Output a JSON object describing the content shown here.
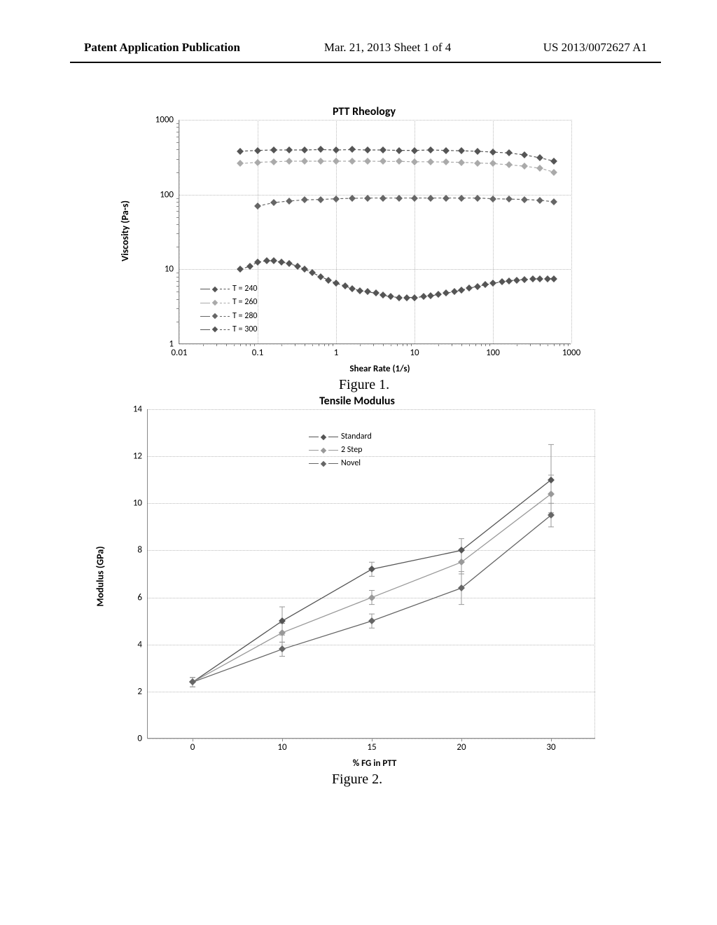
{
  "header": {
    "left": "Patent Application Publication",
    "center": "Mar. 21, 2013  Sheet 1 of 4",
    "right": "US 2013/0072627 A1"
  },
  "fig1": {
    "type": "line",
    "title": "PTT Rheology",
    "ylabel": "Viscosity (Pa-s)",
    "xlabel": "Shear Rate (1/s)",
    "yscale": "log",
    "xscale": "log",
    "ylim": [
      1,
      1000
    ],
    "xlim": [
      0.01,
      1000
    ],
    "yticks": [
      1,
      10,
      100,
      1000
    ],
    "xticks": [
      0.01,
      0.1,
      1,
      10,
      100,
      1000
    ],
    "grid_color": "#bbbbbb",
    "background_color": "#ffffff",
    "legend_items": [
      "T = 240",
      "T = 260",
      "T = 280",
      "T = 300"
    ],
    "legend_position": "lower-left",
    "series": [
      {
        "name": "T = 240",
        "color": "#555555",
        "marker": "diamond",
        "x": [
          0.06,
          0.1,
          0.16,
          0.25,
          0.4,
          0.63,
          1,
          1.6,
          2.5,
          4,
          6.3,
          10,
          16,
          25,
          40,
          63,
          100,
          160,
          250,
          400,
          600
        ],
        "y": [
          380,
          390,
          395,
          395,
          395,
          400,
          395,
          400,
          395,
          395,
          390,
          390,
          395,
          390,
          385,
          380,
          370,
          360,
          340,
          310,
          280
        ]
      },
      {
        "name": "T = 260",
        "color": "#aaaaaa",
        "marker": "diamond",
        "x": [
          0.06,
          0.1,
          0.16,
          0.25,
          0.4,
          0.63,
          1,
          1.6,
          2.5,
          4,
          6.3,
          10,
          16,
          25,
          40,
          63,
          100,
          160,
          250,
          400,
          600
        ],
        "y": [
          260,
          270,
          275,
          280,
          280,
          280,
          280,
          280,
          280,
          278,
          278,
          275,
          275,
          272,
          270,
          265,
          260,
          250,
          240,
          225,
          200
        ]
      },
      {
        "name": "T = 280",
        "color": "#666666",
        "marker": "diamond",
        "x": [
          0.1,
          0.16,
          0.25,
          0.4,
          0.63,
          1,
          1.6,
          2.5,
          4,
          6.3,
          10,
          16,
          25,
          40,
          63,
          100,
          160,
          250,
          400,
          600
        ],
        "y": [
          70,
          78,
          82,
          85,
          86,
          88,
          89,
          90,
          90,
          90,
          90,
          90,
          90,
          90,
          90,
          88,
          87,
          86,
          84,
          80
        ]
      },
      {
        "name": "T = 300",
        "color": "#555555",
        "marker": "diamond",
        "x": [
          0.06,
          0.08,
          0.1,
          0.13,
          0.16,
          0.2,
          0.25,
          0.32,
          0.4,
          0.5,
          0.63,
          0.8,
          1,
          1.3,
          1.6,
          2,
          2.5,
          3.2,
          4,
          5,
          6.3,
          8,
          10,
          13,
          16,
          20,
          25,
          32,
          40,
          50,
          63,
          80,
          100,
          130,
          160,
          200,
          250,
          320,
          400,
          500,
          600
        ],
        "y": [
          10,
          11,
          12.5,
          13,
          13,
          12.5,
          12,
          11,
          10,
          9,
          8,
          7.2,
          6.5,
          6,
          5.5,
          5.2,
          5,
          4.8,
          4.5,
          4.3,
          4.2,
          4.2,
          4.2,
          4.3,
          4.4,
          4.6,
          4.8,
          5,
          5.3,
          5.6,
          5.9,
          6.2,
          6.5,
          6.8,
          7,
          7.2,
          7.3,
          7.4,
          7.5,
          7.5,
          7.5
        ]
      }
    ],
    "caption": "Figure 1."
  },
  "fig2": {
    "type": "line",
    "title": "Tensile Modulus",
    "ylabel": "Modulus (GPa)",
    "xlabel": "% FG in PTT",
    "yscale": "linear",
    "xscale": "category",
    "ylim": [
      0,
      14
    ],
    "yticks": [
      0,
      2,
      4,
      6,
      8,
      10,
      12,
      14
    ],
    "xticks": [
      0,
      10,
      15,
      20,
      30
    ],
    "grid_color": "#bbbbbb",
    "background_color": "#ffffff",
    "legend_items": [
      "Standard",
      "2 Step",
      "Novel"
    ],
    "legend_position": "upper-center-left",
    "error_bars": true,
    "series": [
      {
        "name": "Standard",
        "color": "#555555",
        "marker": "diamond",
        "x": [
          0,
          10,
          15,
          20,
          30
        ],
        "y": [
          2.4,
          5.0,
          7.2,
          8.0,
          11.0
        ],
        "err": [
          0.2,
          0.6,
          0.3,
          0.5,
          1.5
        ]
      },
      {
        "name": "2 Step",
        "color": "#999999",
        "marker": "diamond",
        "x": [
          0,
          10,
          15,
          20,
          30
        ],
        "y": [
          2.4,
          4.5,
          6.0,
          7.5,
          10.4
        ],
        "err": [
          0.2,
          0.4,
          0.3,
          0.5,
          0.8
        ]
      },
      {
        "name": "Novel",
        "color": "#666666",
        "marker": "diamond",
        "x": [
          0,
          10,
          15,
          20,
          30
        ],
        "y": [
          2.4,
          3.8,
          5.0,
          6.4,
          9.5
        ],
        "err": [
          0.2,
          0.3,
          0.3,
          0.7,
          0.5
        ]
      }
    ],
    "caption": "Figure 2."
  }
}
